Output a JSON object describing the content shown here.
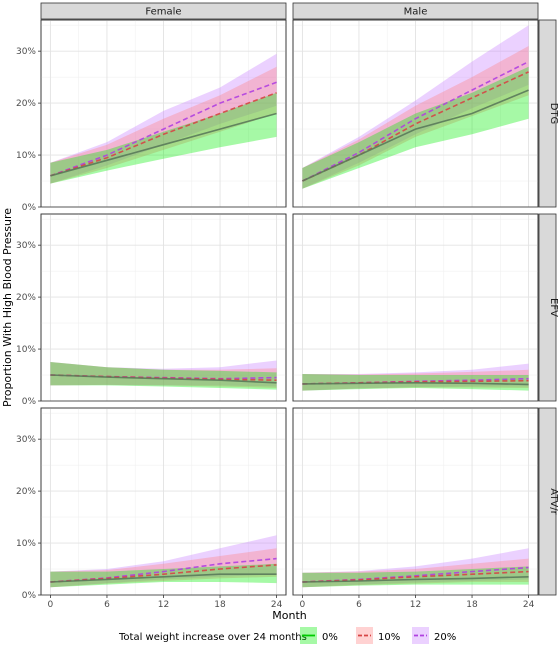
{
  "chart_data": {
    "type": "line",
    "xlabel": "Month",
    "ylabel": "Proportion With High Blood Pressure",
    "x_ticks": [
      0,
      6,
      12,
      18,
      24
    ],
    "y_ticks": [
      "0%",
      "10%",
      "20%",
      "30%"
    ],
    "xlim": [
      -1,
      25
    ],
    "ylim": [
      0,
      36
    ],
    "col_facets": [
      "Female",
      "Male"
    ],
    "row_facets": [
      "DTG",
      "EFV",
      "ATV/r"
    ],
    "legend": {
      "title": "Total weight increase over 24 months",
      "position": "bottom",
      "entries": [
        {
          "label": "0%",
          "color": "#00CC00",
          "fill": "#00EE00",
          "dash": "solid"
        },
        {
          "label": "10%",
          "color": "#D64545",
          "fill": "#FF7F7F",
          "dash": "dashed"
        },
        {
          "label": "20%",
          "color": "#B040E0",
          "fill": "#C77CFF",
          "dash": "dashed"
        }
      ]
    },
    "x": [
      0,
      6,
      12,
      18,
      24
    ],
    "panels": [
      {
        "row": "DTG",
        "col": "Female",
        "series": [
          {
            "name": "0%",
            "values": [
              6,
              9,
              12,
              15,
              18
            ],
            "lower": [
              4.5,
              7,
              9.3,
              11.5,
              13.5
            ],
            "upper": [
              8.5,
              11,
              14.5,
              18,
              22
            ]
          },
          {
            "name": "10%",
            "values": [
              6,
              9.5,
              14,
              18,
              22
            ],
            "lower": [
              4.5,
              7.5,
              11,
              14.5,
              18
            ],
            "upper": [
              8.5,
              12,
              17,
              21.5,
              27
            ]
          },
          {
            "name": "20%",
            "values": [
              6,
              10,
              15,
              20,
              24
            ],
            "lower": [
              4.5,
              8,
              12,
              16,
              19.5
            ],
            "upper": [
              8.5,
              12.5,
              18.5,
              23,
              29.5
            ]
          }
        ]
      },
      {
        "row": "DTG",
        "col": "Male",
        "series": [
          {
            "name": "0%",
            "values": [
              5,
              10,
              15,
              18,
              22.5
            ],
            "lower": [
              3.5,
              7.5,
              11.5,
              14,
              17
            ],
            "upper": [
              7.5,
              12.5,
              18,
              22,
              27
            ]
          },
          {
            "name": "10%",
            "values": [
              5,
              10,
              16,
              21,
              26
            ],
            "lower": [
              3.5,
              8,
              13.5,
              17.5,
              21.5
            ],
            "upper": [
              7.5,
              13,
              19.5,
              25,
              31
            ]
          },
          {
            "name": "20%",
            "values": [
              5,
              10.5,
              17,
              22.5,
              28
            ],
            "lower": [
              3.5,
              8.5,
              14,
              19,
              23.5
            ],
            "upper": [
              7.5,
              13.5,
              20.5,
              28,
              35
            ]
          }
        ]
      },
      {
        "row": "EFV",
        "col": "Female",
        "series": [
          {
            "name": "0%",
            "values": [
              5,
              4.6,
              4.3,
              4,
              3.5
            ],
            "lower": [
              3,
              3,
              2.8,
              2.5,
              2.2
            ],
            "upper": [
              7.5,
              6.5,
              6,
              5.8,
              5.5
            ]
          },
          {
            "name": "10%",
            "values": [
              5,
              4.7,
              4.4,
              4.2,
              4
            ],
            "lower": [
              3,
              3.1,
              3,
              2.8,
              2.5
            ],
            "upper": [
              7.5,
              6.5,
              6,
              6,
              6.3
            ]
          },
          {
            "name": "20%",
            "values": [
              5,
              4.7,
              4.5,
              4.3,
              4.5
            ],
            "lower": [
              3,
              3.1,
              3,
              3,
              2.8
            ],
            "upper": [
              7.5,
              6.5,
              6.2,
              6.5,
              7.8
            ]
          }
        ]
      },
      {
        "row": "EFV",
        "col": "Male",
        "series": [
          {
            "name": "0%",
            "values": [
              3.3,
              3.4,
              3.5,
              3.4,
              3.2
            ],
            "lower": [
              2,
              2.3,
              2.5,
              2.3,
              2
            ],
            "upper": [
              5.2,
              5,
              5,
              5,
              5
            ]
          },
          {
            "name": "10%",
            "values": [
              3.3,
              3.5,
              3.7,
              3.8,
              3.9
            ],
            "lower": [
              2,
              2.4,
              2.6,
              2.6,
              2.5
            ],
            "upper": [
              5.2,
              5.1,
              5.3,
              5.6,
              6
            ]
          },
          {
            "name": "20%",
            "values": [
              3.3,
              3.5,
              3.8,
              4,
              4.3
            ],
            "lower": [
              2,
              2.4,
              2.7,
              2.8,
              2.8
            ],
            "upper": [
              5.2,
              5.2,
              5.5,
              6,
              7.2
            ]
          }
        ]
      },
      {
        "row": "ATV/r",
        "col": "Female",
        "series": [
          {
            "name": "0%",
            "values": [
              2.5,
              3,
              3.5,
              4,
              4
            ],
            "lower": [
              1.5,
              2,
              2.5,
              2.5,
              2.3
            ],
            "upper": [
              4.5,
              4.5,
              5,
              5.5,
              6
            ]
          },
          {
            "name": "10%",
            "values": [
              2.5,
              3.2,
              4,
              5,
              5.8
            ],
            "lower": [
              1.5,
              2.2,
              2.7,
              3.2,
              3.5
            ],
            "upper": [
              4.5,
              4.8,
              6,
              7.5,
              9
            ]
          },
          {
            "name": "20%",
            "values": [
              2.5,
              3.3,
              4.5,
              6,
              7
            ],
            "lower": [
              1.5,
              2.3,
              3,
              3.5,
              4
            ],
            "upper": [
              4.5,
              5,
              6.5,
              9,
              11.5
            ]
          }
        ]
      },
      {
        "row": "ATV/r",
        "col": "Male",
        "series": [
          {
            "name": "0%",
            "values": [
              2.5,
              2.7,
              3,
              3.2,
              3.5
            ],
            "lower": [
              1.5,
              1.8,
              2,
              2,
              2
            ],
            "upper": [
              4.3,
              4.3,
              4.5,
              5,
              5.5
            ]
          },
          {
            "name": "10%",
            "values": [
              2.5,
              2.9,
              3.5,
              4,
              4.5
            ],
            "lower": [
              1.5,
              1.9,
              2.2,
              2.5,
              2.5
            ],
            "upper": [
              4.3,
              4.5,
              5,
              6,
              7
            ]
          },
          {
            "name": "20%",
            "values": [
              2.5,
              3,
              3.7,
              4.5,
              5.3
            ],
            "lower": [
              1.5,
              2,
              2.4,
              2.7,
              3
            ],
            "upper": [
              4.3,
              4.6,
              5.5,
              7,
              9
            ]
          }
        ]
      }
    ]
  }
}
